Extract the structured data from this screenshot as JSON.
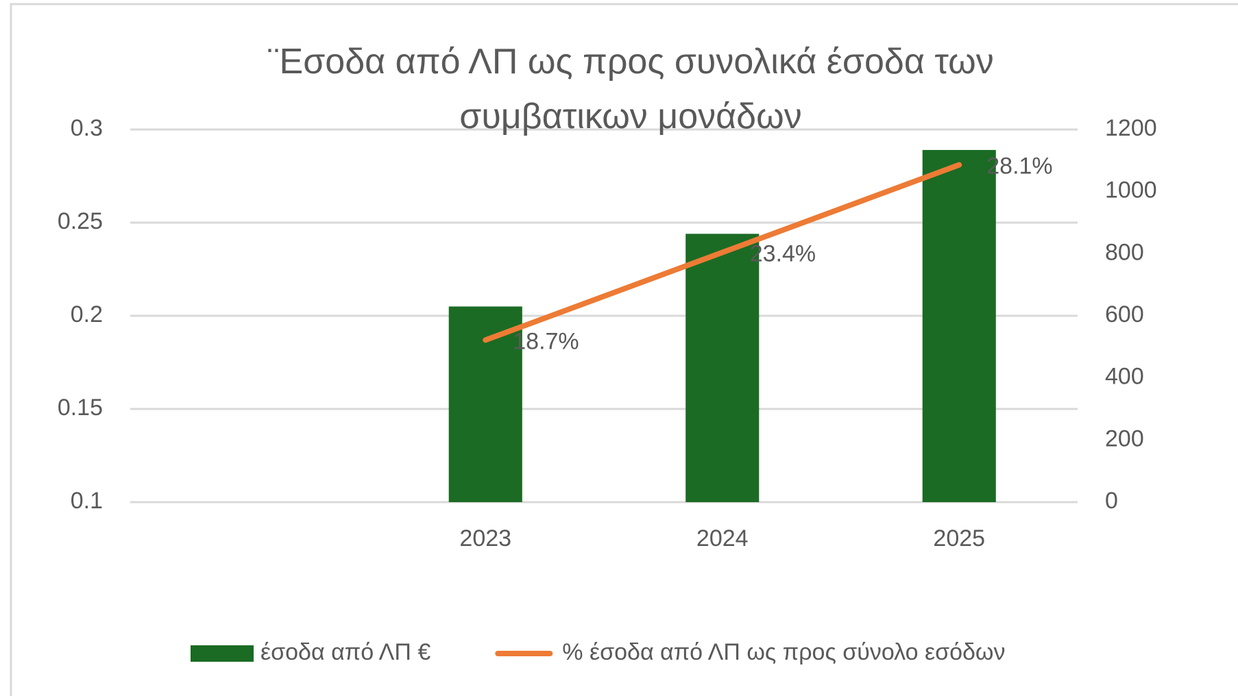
{
  "chart_data": {
    "type": "bar-line",
    "title": "¨Εσοδα από ΛΠ ως προς συνολικά έσοδα των συμβατικων μονάδων",
    "categories": [
      null,
      "2023",
      "2024",
      "2025"
    ],
    "series": [
      {
        "name": "έσοδα από ΛΠ €",
        "type": "bar",
        "axis": "y2",
        "color": "#1b6b24",
        "values": [
          null,
          630,
          864,
          1134
        ]
      },
      {
        "name": "% έσοδα από ΛΠ ως προς σύνολο εσόδων",
        "type": "line",
        "axis": "y",
        "color": "#ed7b35",
        "values": [
          null,
          0.187,
          0.234,
          0.281
        ],
        "value_labels": [
          null,
          "18.7%",
          "23.4%",
          "28.1%"
        ]
      }
    ],
    "ylim": [
      0.1,
      0.3
    ],
    "yticks": [
      0.1,
      0.15,
      0.2,
      0.25,
      0.3
    ],
    "y2lim": [
      0,
      1200
    ],
    "y2ticks": [
      0,
      200,
      400,
      600,
      800,
      1000,
      1200
    ],
    "grid": true,
    "legend": "bottom"
  }
}
